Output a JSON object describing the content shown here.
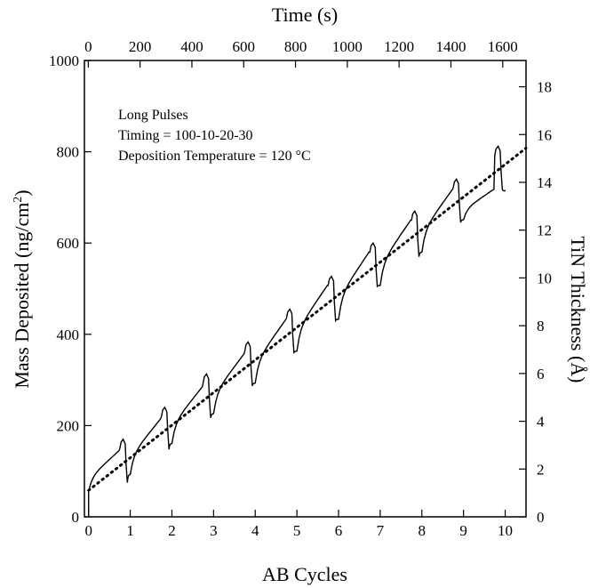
{
  "chart_data": {
    "type": "line",
    "x_label": "AB Cycles",
    "x_top_label": "Time (s)",
    "y_label_left": "Mass Deposited (ng/cm",
    "y_label_left_sup": "2",
    "y_label_left_close": ")",
    "y_label_right": "TiN Thickness (Å)",
    "xlim": [
      -0.1,
      10.5
    ],
    "ylim": [
      0,
      1000
    ],
    "x_ticks": [
      0,
      1,
      2,
      3,
      4,
      5,
      6,
      7,
      8,
      9,
      10
    ],
    "x_top_ticks": [
      0,
      200,
      400,
      600,
      800,
      1000,
      1200,
      1400,
      1600
    ],
    "x_top_range_seconds": [
      -15,
      1690
    ],
    "y_ticks": [
      0,
      200,
      400,
      600,
      800,
      1000
    ],
    "y_right_ticks": [
      0,
      2,
      4,
      6,
      8,
      10,
      12,
      14,
      16,
      18
    ],
    "y_right_range": [
      0,
      19.1
    ],
    "annotations": [
      "Long Pulses",
      "Timing = 100-10-20-30",
      "Deposition Temperature = 120 °C"
    ],
    "series": [
      {
        "style": "solid",
        "cycle_start_mass": [
          55,
          93,
          161,
          226,
          293,
          363,
          433,
          507,
          580,
          651
        ],
        "cycle_end_mass": [
          145,
          215,
          285,
          357,
          432,
          507,
          580,
          650,
          717,
          718
        ],
        "pulse_peak_mass": [
          170,
          240,
          313,
          383,
          455,
          527,
          600,
          670,
          740,
          812
        ],
        "pulse_dip_mass": [
          75,
          148,
          217,
          287,
          360,
          430,
          505,
          570,
          645,
          718
        ],
        "pulse_start_cycle": 0.75
      },
      {
        "style": "dotted",
        "x": [
          0,
          10.5
        ],
        "y": [
          58,
          808
        ]
      }
    ]
  }
}
